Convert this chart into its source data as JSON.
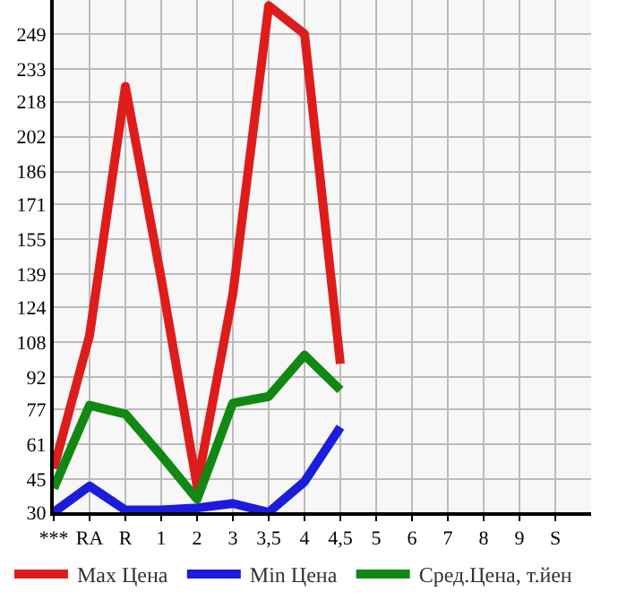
{
  "chart_data": {
    "type": "line",
    "categories": [
      "***",
      "RA",
      "R",
      "1",
      "2",
      "3",
      "3,5",
      "4",
      "4,5",
      "5",
      "6",
      "7",
      "8",
      "9",
      "S"
    ],
    "series": [
      {
        "name": "Max Цена",
        "color": "#dd1c1c",
        "values": [
          50,
          111,
          225,
          137,
          42,
          130,
          262,
          249,
          98,
          null,
          null,
          null,
          null,
          null,
          null
        ]
      },
      {
        "name": "Min Цена",
        "color": "#1c1cdd",
        "values": [
          30,
          42,
          31,
          31,
          32,
          34,
          30,
          44,
          69,
          null,
          null,
          null,
          null,
          null,
          null
        ]
      },
      {
        "name": "Сред.Цена, т.йен",
        "color": "#118811",
        "values": [
          41,
          79,
          75,
          56,
          36,
          80,
          83,
          102,
          86,
          null,
          null,
          null,
          null,
          null,
          null
        ]
      }
    ],
    "ylim": [
      30,
      264.6
    ],
    "yticks": [
      30,
      45,
      61,
      77,
      92,
      108,
      124,
      139,
      155,
      171,
      186,
      202,
      218,
      233,
      249
    ],
    "grid": true,
    "legend": "bottom",
    "marker": "none",
    "line_style": "solid"
  }
}
